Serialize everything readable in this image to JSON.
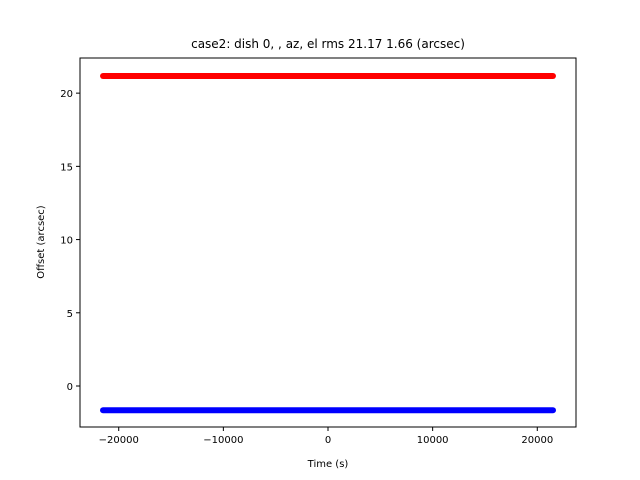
{
  "chart_data": {
    "type": "scatter",
    "title": "case2: dish 0, , az, el rms 21.17 1.66 (arcsec)",
    "xlabel": "Time (s)",
    "ylabel": "Offset (arcsec)",
    "xlim": [
      -23700,
      23700
    ],
    "ylim": [
      -2.8,
      22.4
    ],
    "xticks": [
      {
        "value": -20000,
        "label": "−20000"
      },
      {
        "value": -10000,
        "label": "−10000"
      },
      {
        "value": 0,
        "label": "0"
      },
      {
        "value": 10000,
        "label": "10000"
      },
      {
        "value": 20000,
        "label": "20000"
      }
    ],
    "yticks": [
      {
        "value": 0,
        "label": "0"
      },
      {
        "value": 5,
        "label": "5"
      },
      {
        "value": 10,
        "label": "10"
      },
      {
        "value": 15,
        "label": "15"
      },
      {
        "value": 20,
        "label": "20"
      }
    ],
    "grid": false,
    "series": [
      {
        "color": "#ff0000",
        "x": [
          -21500,
          21500
        ],
        "y": [
          21.17,
          21.17
        ]
      },
      {
        "color": "#0000ff",
        "x": [
          -21500,
          21500
        ],
        "y": [
          -1.66,
          -1.66
        ]
      }
    ]
  }
}
